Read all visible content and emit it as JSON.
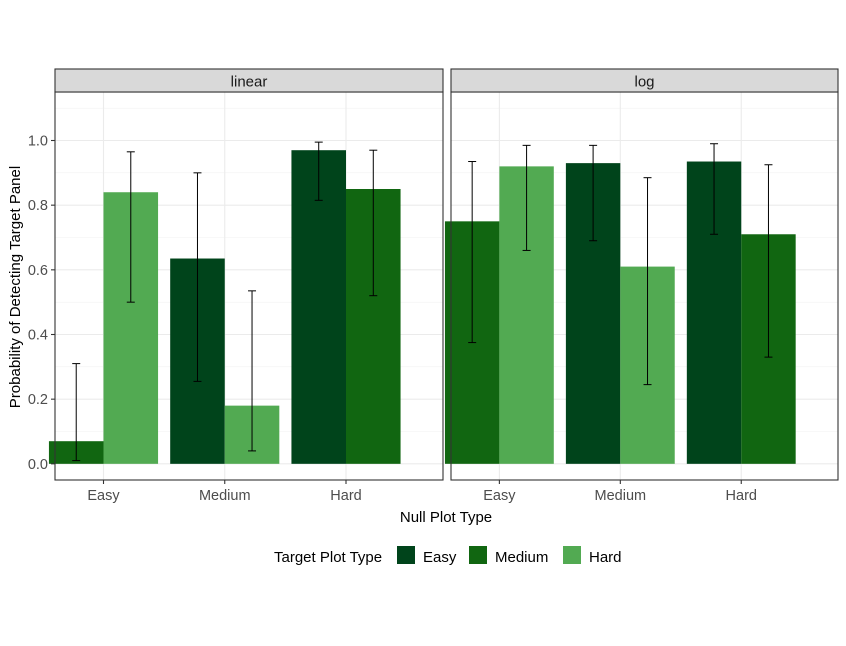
{
  "chart_data": {
    "type": "bar",
    "title": "",
    "xlabel": "Null Plot Type",
    "ylabel": "Probability of Detecting Target Panel",
    "ylim": [
      -0.05,
      1.15
    ],
    "yticks": [
      "0.0",
      "0.2",
      "0.4",
      "0.6",
      "0.8",
      "1.0"
    ],
    "grid": true,
    "categories": [
      "Easy",
      "Medium",
      "Hard"
    ],
    "legend": {
      "title": "Target Plot Type",
      "position": "bottom",
      "entries": [
        {
          "label": "Easy",
          "color": "#00441b"
        },
        {
          "label": "Medium",
          "color": "#116611"
        },
        {
          "label": "Hard",
          "color": "#52aa52"
        }
      ]
    },
    "facets": [
      {
        "label": "linear",
        "bars": [
          {
            "category": "Easy",
            "target": "Medium",
            "value": 0.07,
            "lower": 0.01,
            "upper": 0.31
          },
          {
            "category": "Easy",
            "target": "Hard",
            "value": 0.84,
            "lower": 0.5,
            "upper": 0.965
          },
          {
            "category": "Medium",
            "target": "Easy",
            "value": 0.635,
            "lower": 0.255,
            "upper": 0.9
          },
          {
            "category": "Medium",
            "target": "Hard",
            "value": 0.18,
            "lower": 0.04,
            "upper": 0.535
          },
          {
            "category": "Hard",
            "target": "Easy",
            "value": 0.97,
            "lower": 0.815,
            "upper": 0.995
          },
          {
            "category": "Hard",
            "target": "Medium",
            "value": 0.85,
            "lower": 0.52,
            "upper": 0.97
          }
        ]
      },
      {
        "label": "log",
        "bars": [
          {
            "category": "Easy",
            "target": "Medium",
            "value": 0.75,
            "lower": 0.375,
            "upper": 0.935
          },
          {
            "category": "Easy",
            "target": "Hard",
            "value": 0.92,
            "lower": 0.66,
            "upper": 0.985
          },
          {
            "category": "Medium",
            "target": "Easy",
            "value": 0.93,
            "lower": 0.69,
            "upper": 0.985
          },
          {
            "category": "Medium",
            "target": "Hard",
            "value": 0.61,
            "lower": 0.245,
            "upper": 0.885
          },
          {
            "category": "Hard",
            "target": "Easy",
            "value": 0.935,
            "lower": 0.71,
            "upper": 0.99
          },
          {
            "category": "Hard",
            "target": "Medium",
            "value": 0.71,
            "lower": 0.33,
            "upper": 0.925
          }
        ]
      }
    ]
  }
}
